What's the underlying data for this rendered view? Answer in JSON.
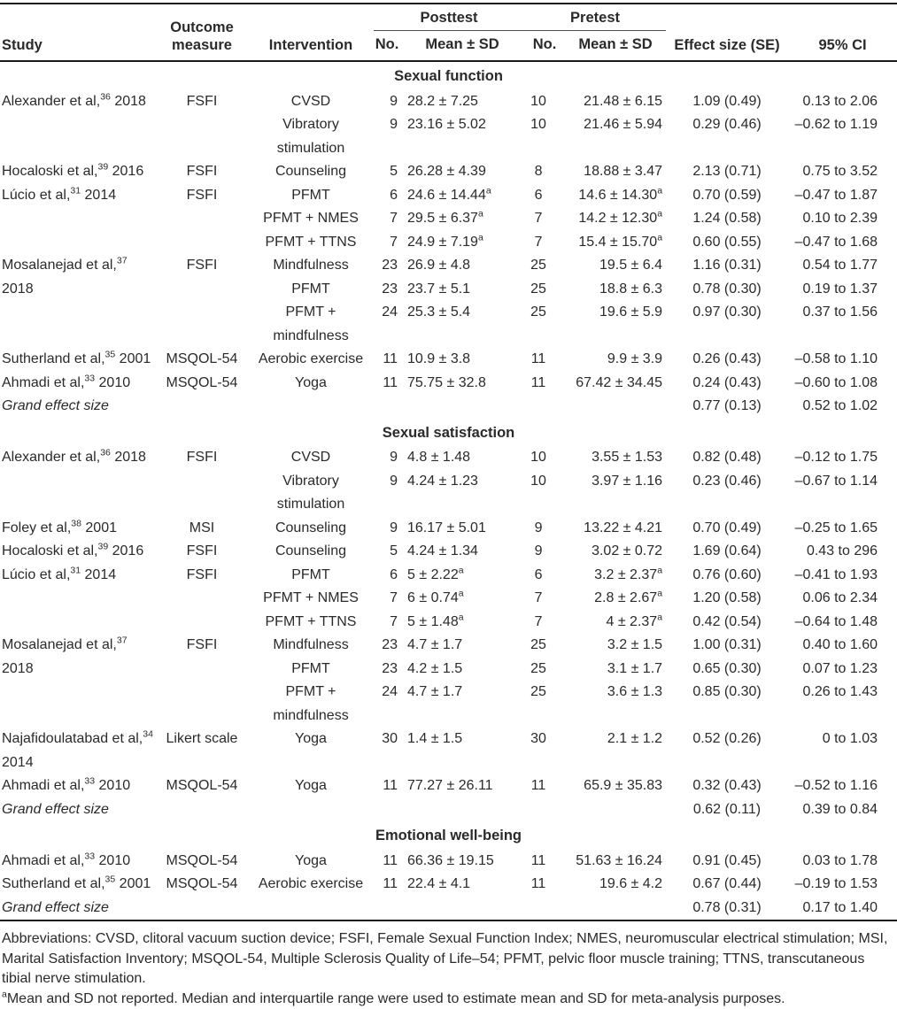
{
  "page": {
    "background": "#ffffff",
    "text_color": "#2a2a2a",
    "rule_color": "#1b1b1b"
  },
  "table": {
    "header": {
      "study": "Study",
      "outcome_measure": "Outcome measure",
      "intervention": "Intervention",
      "posttest": "Posttest",
      "pretest": "Pretest",
      "no": "No.",
      "mean_sd": "Mean ± SD",
      "effect_size": "Effect size (SE)",
      "ci": "95% CI"
    },
    "sections": [
      {
        "title": "Sexual function",
        "rows": [
          {
            "study": {
              "text": "Alexander et al,",
              "sup": "36",
              "tail": " 2018",
              "rowspan": 2
            },
            "measure": {
              "text": "FSFI",
              "rowspan": 2
            },
            "intervention": "CVSD",
            "post_n": "9",
            "post_mean": "28.2 ± 7.25",
            "pre_n": "10",
            "pre_mean": "21.48 ± 6.15",
            "effect": "1.09 (0.49)",
            "ci": "0.13 to 2.06"
          },
          {
            "intervention": "Vibratory stimulation",
            "post_n": "9",
            "post_mean": "23.16 ± 5.02",
            "pre_n": "10",
            "pre_mean": "21.46 ± 5.94",
            "effect": "0.29 (0.46)",
            "ci": "–0.62 to 1.19"
          },
          {
            "study": {
              "text": "Hocaloski et al,",
              "sup": "39",
              "tail": " 2016"
            },
            "measure": "FSFI",
            "intervention": "Counseling",
            "post_n": "5",
            "post_mean": "26.28 ± 4.39",
            "pre_n": "8",
            "pre_mean": "18.88 ± 3.47",
            "effect": "2.13 (0.71)",
            "ci": "0.75 to 3.52"
          },
          {
            "study": {
              "text": "Lúcio et al,",
              "sup": "31",
              "tail": " 2014",
              "rowspan": 3
            },
            "measure": {
              "text": "FSFI",
              "rowspan": 3
            },
            "intervention": "PFMT",
            "post_n": "6",
            "post_mean": "24.6 ± 14.44",
            "post_sup": "a",
            "pre_n": "6",
            "pre_mean": "14.6 ± 14.30",
            "pre_sup": "a",
            "effect": "0.70 (0.59)",
            "ci": "–0.47 to 1.87"
          },
          {
            "intervention": "PFMT + NMES",
            "post_n": "7",
            "post_mean": "29.5 ± 6.37",
            "post_sup": "a",
            "pre_n": "7",
            "pre_mean": "14.2 ± 12.30",
            "pre_sup": "a",
            "effect": "1.24 (0.58)",
            "ci": "0.10 to 2.39"
          },
          {
            "intervention": "PFMT + TTNS",
            "post_n": "7",
            "post_mean": "24.9 ± 7.19",
            "post_sup": "a",
            "pre_n": "7",
            "pre_mean": "15.4 ± 15.70",
            "pre_sup": "a",
            "effect": "0.60 (0.55)",
            "ci": "–0.47 to 1.68"
          },
          {
            "study": {
              "text": "Mosalanejad et al,",
              "sup": "37",
              "tail": " 2018",
              "rowspan": 3
            },
            "measure": {
              "text": "FSFI",
              "rowspan": 3
            },
            "intervention": "Mindfulness",
            "post_n": "23",
            "post_mean": "26.9 ± 4.8",
            "pre_n": "25",
            "pre_mean": "19.5 ± 6.4",
            "effect": "1.16 (0.31)",
            "ci": "0.54 to 1.77"
          },
          {
            "intervention": "PFMT",
            "post_n": "23",
            "post_mean": "23.7 ± 5.1",
            "pre_n": "25",
            "pre_mean": "18.8 ± 6.3",
            "effect": "0.78 (0.30)",
            "ci": "0.19 to 1.37"
          },
          {
            "intervention": "PFMT + mindfulness",
            "post_n": "24",
            "post_mean": "25.3 ± 5.4",
            "pre_n": "25",
            "pre_mean": "19.6 ± 5.9",
            "effect": "0.97 (0.30)",
            "ci": "0.37 to 1.56"
          },
          {
            "study": {
              "text": "Sutherland et al,",
              "sup": "35",
              "tail": " 2001"
            },
            "measure": "MSQOL-54",
            "intervention": "Aerobic exercise",
            "post_n": "11",
            "post_mean": "10.9 ± 3.8",
            "pre_n": "11",
            "pre_mean": "9.9 ± 3.9",
            "effect": "0.26 (0.43)",
            "ci": "–0.58 to 1.10"
          },
          {
            "study": {
              "text": "Ahmadi et al,",
              "sup": "33",
              "tail": " 2010"
            },
            "measure": "MSQOL-54",
            "intervention": "Yoga",
            "post_n": "11",
            "post_mean": "75.75 ± 32.8",
            "pre_n": "11",
            "pre_mean": "67.42 ± 34.45",
            "effect": "0.24 (0.43)",
            "ci": "–0.60 to 1.08"
          },
          {
            "study": {
              "text": "Grand effect size",
              "italic": true
            },
            "measure": "",
            "intervention": "",
            "post_n": "",
            "post_mean": "",
            "pre_n": "",
            "pre_mean": "",
            "effect": "0.77 (0.13)",
            "ci": "0.52 to 1.02"
          }
        ]
      },
      {
        "title": "Sexual satisfaction",
        "rows": [
          {
            "study": {
              "text": "Alexander et al,",
              "sup": "36",
              "tail": " 2018",
              "rowspan": 2
            },
            "measure": {
              "text": "FSFI",
              "rowspan": 2
            },
            "intervention": "CVSD",
            "post_n": "9",
            "post_mean": "4.8 ± 1.48",
            "pre_n": "10",
            "pre_mean": "3.55 ± 1.53",
            "effect": "0.82 (0.48)",
            "ci": "–0.12 to 1.75"
          },
          {
            "intervention": "Vibratory stimulation",
            "post_n": "9",
            "post_mean": "4.24 ± 1.23",
            "pre_n": "10",
            "pre_mean": "3.97 ± 1.16",
            "effect": "0.23 (0.46)",
            "ci": "–0.67 to 1.14"
          },
          {
            "study": {
              "text": "Foley et al,",
              "sup": "38",
              "tail": " 2001"
            },
            "measure": "MSI",
            "intervention": "Counseling",
            "post_n": "9",
            "post_mean": "16.17 ± 5.01",
            "pre_n": "9",
            "pre_mean": "13.22 ± 4.21",
            "effect": "0.70 (0.49)",
            "ci": "–0.25 to 1.65"
          },
          {
            "study": {
              "text": "Hocaloski et al,",
              "sup": "39",
              "tail": " 2016"
            },
            "measure": "FSFI",
            "intervention": "Counseling",
            "post_n": "5",
            "post_mean": "4.24 ± 1.34",
            "pre_n": "9",
            "pre_mean": "3.02 ± 0.72",
            "effect": "1.69 (0.64)",
            "ci": "0.43 to 296"
          },
          {
            "study": {
              "text": "Lúcio et al,",
              "sup": "31",
              "tail": " 2014",
              "rowspan": 3
            },
            "measure": {
              "text": "FSFI",
              "rowspan": 3
            },
            "intervention": "PFMT",
            "post_n": "6",
            "post_mean": "5 ± 2.22",
            "post_sup": "a",
            "pre_n": "6",
            "pre_mean": "3.2 ± 2.37",
            "pre_sup": "a",
            "effect": "0.76 (0.60)",
            "ci": "–0.41 to 1.93"
          },
          {
            "intervention": "PFMT + NMES",
            "post_n": "7",
            "post_mean": "6 ± 0.74",
            "post_sup": "a",
            "pre_n": "7",
            "pre_mean": "2.8 ± 2.67",
            "pre_sup": "a",
            "effect": "1.20 (0.58)",
            "ci": "0.06 to 2.34"
          },
          {
            "intervention": "PFMT + TTNS",
            "post_n": "7",
            "post_mean": "5 ± 1.48",
            "post_sup": "a",
            "pre_n": "7",
            "pre_mean": "4 ± 2.37",
            "pre_sup": "a",
            "effect": "0.42 (0.54)",
            "ci": "–0.64 to 1.48"
          },
          {
            "study": {
              "text": "Mosalanejad et al,",
              "sup": "37",
              "tail": " 2018",
              "rowspan": 3
            },
            "measure": {
              "text": "FSFI",
              "rowspan": 3
            },
            "intervention": "Mindfulness",
            "post_n": "23",
            "post_mean": "4.7 ± 1.7",
            "pre_n": "25",
            "pre_mean": "3.2 ± 1.5",
            "effect": "1.00 (0.31)",
            "ci": "0.40 to 1.60"
          },
          {
            "intervention": "PFMT",
            "post_n": "23",
            "post_mean": "4.2 ± 1.5",
            "pre_n": "25",
            "pre_mean": "3.1 ± 1.7",
            "effect": "0.65 (0.30)",
            "ci": "0.07 to 1.23"
          },
          {
            "intervention": "PFMT + mindfulness",
            "post_n": "24",
            "post_mean": "4.7 ± 1.7",
            "pre_n": "25",
            "pre_mean": "3.6 ± 1.3",
            "effect": "0.85 (0.30)",
            "ci": "0.26 to 1.43"
          },
          {
            "study": {
              "text": "Najafidoulatabad et al,",
              "sup": "34",
              "tail": " 2014"
            },
            "measure": "Likert scale",
            "intervention": "Yoga",
            "post_n": "30",
            "post_mean": "1.4 ± 1.5",
            "pre_n": "30",
            "pre_mean": "2.1 ± 1.2",
            "effect": "0.52 (0.26)",
            "ci": "0 to 1.03"
          },
          {
            "study": {
              "text": "Ahmadi et al,",
              "sup": "33",
              "tail": " 2010"
            },
            "measure": "MSQOL-54",
            "intervention": "Yoga",
            "post_n": "11",
            "post_mean": "77.27 ± 26.11",
            "pre_n": "11",
            "pre_mean": "65.9 ± 35.83",
            "effect": "0.32 (0.43)",
            "ci": "–0.52 to 1.16"
          },
          {
            "study": {
              "text": "Grand effect size",
              "italic": true
            },
            "measure": "",
            "intervention": "",
            "post_n": "",
            "post_mean": "",
            "pre_n": "",
            "pre_mean": "",
            "effect": "0.62 (0.11)",
            "ci": "0.39 to 0.84"
          }
        ]
      },
      {
        "title": "Emotional well-being",
        "rows": [
          {
            "study": {
              "text": "Ahmadi et al,",
              "sup": "33",
              "tail": " 2010"
            },
            "measure": "MSQOL-54",
            "intervention": "Yoga",
            "post_n": "11",
            "post_mean": "66.36 ± 19.15",
            "pre_n": "11",
            "pre_mean": "51.63 ± 16.24",
            "effect": "0.91 (0.45)",
            "ci": "0.03 to 1.78"
          },
          {
            "study": {
              "text": "Sutherland et al,",
              "sup": "35",
              "tail": " 2001"
            },
            "measure": "MSQOL-54",
            "intervention": "Aerobic exercise",
            "post_n": "11",
            "post_mean": "22.4 ± 4.1",
            "pre_n": "11",
            "pre_mean": "19.6 ± 4.2",
            "effect": "0.67 (0.44)",
            "ci": "–0.19 to 1.53"
          },
          {
            "study": {
              "text": "Grand effect size",
              "italic": true
            },
            "measure": "",
            "intervention": "",
            "post_n": "",
            "post_mean": "",
            "pre_n": "",
            "pre_mean": "",
            "effect": "0.78 (0.31)",
            "ci": "0.17 to 1.40"
          }
        ]
      }
    ]
  },
  "footnotes": {
    "abbreviations": "Abbreviations: CVSD, clitoral vacuum suction device; FSFI, Female Sexual Function Index; NMES, neuromuscular electrical stimulation; MSI, Marital Satisfaction Inventory; MSQOL-54, Multiple Sclerosis Quality of Life–54; PFMT, pelvic floor muscle training; TTNS, transcutaneous tibial nerve stimulation.",
    "marker": "a",
    "note_a": "Mean and SD not reported. Median and interquartile range were used to estimate mean and SD for meta-analysis purposes."
  }
}
